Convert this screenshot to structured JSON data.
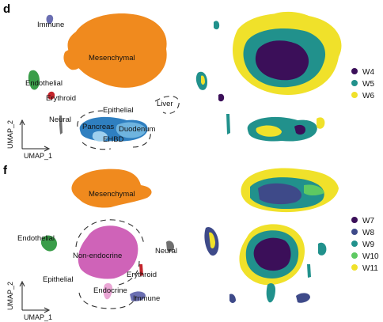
{
  "panels": [
    {
      "id": "d",
      "label": "d",
      "axis_x": "UMAP_1",
      "axis_y": "UMAP_2",
      "clusters": [
        "Immune",
        "Mesenchymal",
        "Endothelial",
        "Erythroid",
        "Neural",
        "Epithelial",
        "Liver",
        "Pancreas",
        "Duodenum",
        "EHBD"
      ],
      "legend": [
        {
          "label": "W4",
          "color": "#3b0f59"
        },
        {
          "label": "W5",
          "color": "#21918c"
        },
        {
          "label": "W6",
          "color": "#f0e12a"
        }
      ]
    },
    {
      "id": "f",
      "label": "f",
      "axis_x": "UMAP_1",
      "axis_y": "UMAP_2",
      "clusters": [
        "Mesenchymal",
        "Endothelial",
        "Non-endocrine",
        "Neural",
        "Epithelial",
        "Erythroid",
        "Endocrine",
        "Immune"
      ],
      "legend": [
        {
          "label": "W7",
          "color": "#3b0f59"
        },
        {
          "label": "W8",
          "color": "#3e4a89"
        },
        {
          "label": "W9",
          "color": "#21918c"
        },
        {
          "label": "W10",
          "color": "#5ec962"
        },
        {
          "label": "W11",
          "color": "#f0e12a"
        }
      ]
    }
  ],
  "colors": {
    "mesenchymal": "#f08a1e",
    "endothelial": "#3a9d49",
    "immune": "#6b6fb2",
    "erythroid": "#c4242b",
    "neural": "#6f6f6f",
    "pancreas": "#2f7fc0",
    "duodenum": "#6fb4df",
    "nonendocrine": "#cf63b8",
    "endocrine": "#eaa6d5"
  }
}
